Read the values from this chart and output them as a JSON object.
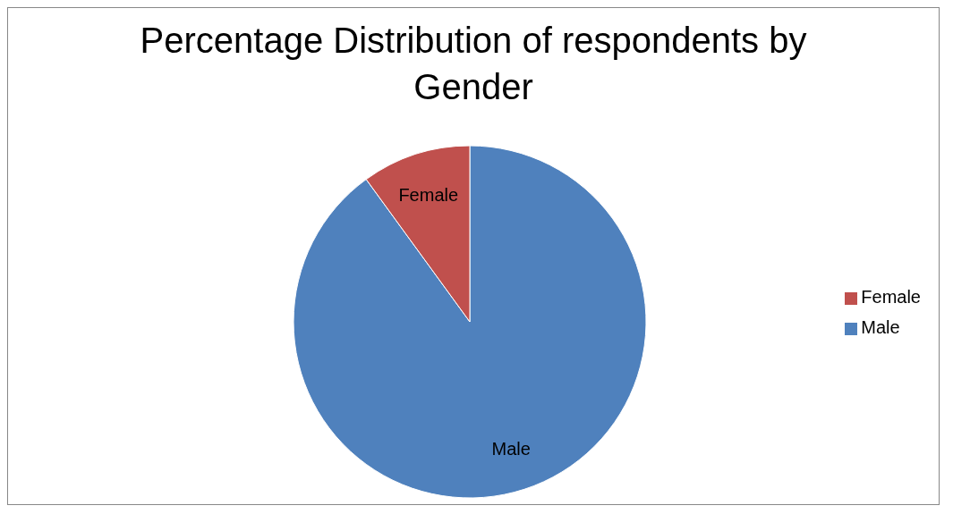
{
  "chart_data": {
    "type": "pie",
    "title": "Percentage Distribution of respondents by Gender",
    "categories": [
      "Male",
      "Female"
    ],
    "values": [
      90,
      10
    ],
    "colors": [
      "#4f81bd",
      "#c0504d"
    ],
    "legend": "right"
  }
}
